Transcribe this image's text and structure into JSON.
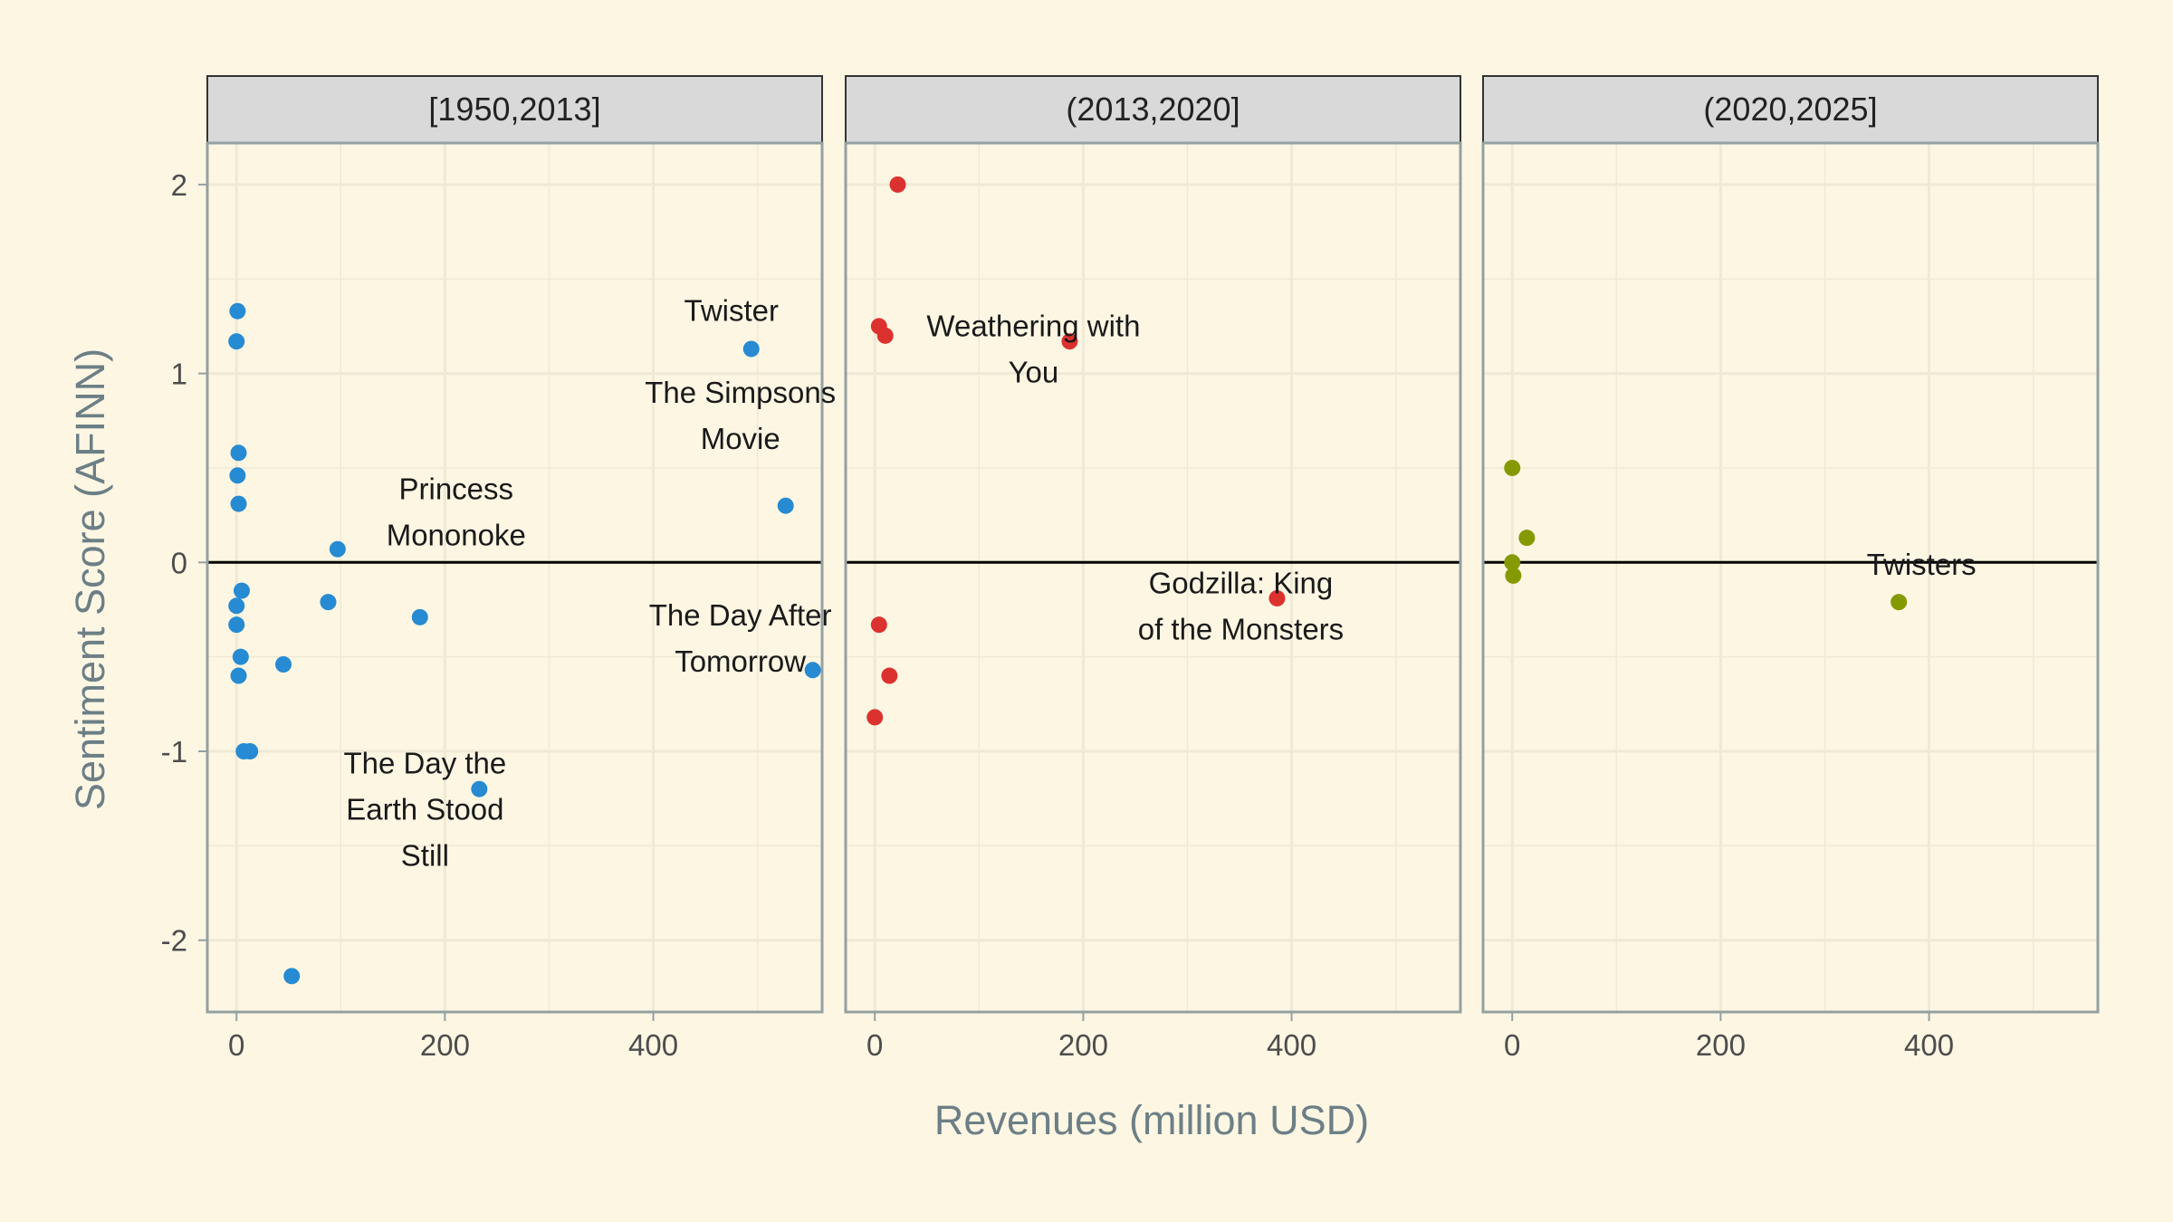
{
  "chart_data": {
    "type": "scatter",
    "xlabel": "Revenues (million USD)",
    "ylabel": "Sentiment Score (AFINN)",
    "xlim": [
      -28,
      562
    ],
    "ylim": [
      -2.38,
      2.22
    ],
    "x_ticks": [
      0,
      200,
      400
    ],
    "y_ticks": [
      -2,
      -1,
      0,
      1,
      2
    ],
    "y_tick_labels": [
      "-2",
      "-1",
      "0",
      "1",
      "2"
    ],
    "reference_line_y": 0,
    "grid": true,
    "colors": {
      "background": "#fdf6e3",
      "grid": "#efe9d6",
      "border": "#93a1a1",
      "strip": "#d9d9d9",
      "reference_line": "#000000"
    },
    "facets": [
      {
        "strip_label": "[1950,2013]",
        "color": "#268bd2",
        "points": [
          {
            "x": 1,
            "y": 1.33
          },
          {
            "x": 0,
            "y": 1.17
          },
          {
            "x": 2,
            "y": 0.58
          },
          {
            "x": 1,
            "y": 0.46
          },
          {
            "x": 2,
            "y": 0.31
          },
          {
            "x": 97,
            "y": 0.07
          },
          {
            "x": 5,
            "y": -0.15
          },
          {
            "x": 0,
            "y": -0.23
          },
          {
            "x": 0,
            "y": -0.33
          },
          {
            "x": 88,
            "y": -0.21
          },
          {
            "x": 176,
            "y": -0.29
          },
          {
            "x": 4,
            "y": -0.5
          },
          {
            "x": 2,
            "y": -0.6
          },
          {
            "x": 45,
            "y": -0.54
          },
          {
            "x": 7,
            "y": -1.0
          },
          {
            "x": 13,
            "y": -1.0
          },
          {
            "x": 233,
            "y": -1.2
          },
          {
            "x": 53,
            "y": -2.19
          },
          {
            "x": 494,
            "y": 1.13
          },
          {
            "x": 527,
            "y": 0.3
          },
          {
            "x": 553,
            "y": -0.57
          }
        ],
        "labels": [
          {
            "text": [
              "Twister"
            ],
            "x": 494,
            "y": 1.13
          },
          {
            "text": [
              "The Simpsons",
              "Movie"
            ],
            "x": 527,
            "y": 0.3
          },
          {
            "text": [
              "Princess",
              "Mononoke"
            ],
            "x": 176,
            "y": -0.29
          },
          {
            "text": [
              "The Day After",
              "Tomorrow"
            ],
            "x": 553,
            "y": -0.57
          },
          {
            "text": [
              "The Day the",
              "Earth Stood",
              "Still"
            ],
            "x": 233,
            "y": -1.2
          }
        ]
      },
      {
        "strip_label": "(2013,2020]",
        "color": "#dc322f",
        "points": [
          {
            "x": 22,
            "y": 2.0
          },
          {
            "x": 4,
            "y": 1.25
          },
          {
            "x": 10,
            "y": 1.2
          },
          {
            "x": 187,
            "y": 1.17
          },
          {
            "x": 4,
            "y": -0.33
          },
          {
            "x": 14,
            "y": -0.6
          },
          {
            "x": 0,
            "y": -0.82
          },
          {
            "x": 386,
            "y": -0.19
          }
        ],
        "labels": [
          {
            "text": [
              "Weathering with",
              "You"
            ],
            "x": 187,
            "y": 1.17
          },
          {
            "text": [
              "Godzilla: King",
              "of the Monsters"
            ],
            "x": 386,
            "y": -0.19
          }
        ]
      },
      {
        "strip_label": "(2020,2025]",
        "color": "#859900",
        "points": [
          {
            "x": 0,
            "y": 0.5
          },
          {
            "x": 14,
            "y": 0.13
          },
          {
            "x": 0,
            "y": 0.0
          },
          {
            "x": 1,
            "y": -0.07
          },
          {
            "x": 371,
            "y": -0.21
          }
        ],
        "labels": [
          {
            "text": [
              "Twisters"
            ],
            "x": 371,
            "y": -0.21
          }
        ]
      }
    ]
  }
}
